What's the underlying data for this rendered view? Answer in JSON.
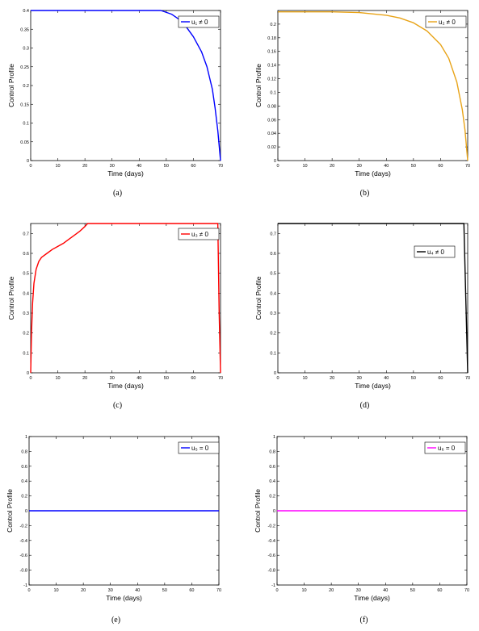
{
  "chart_data": [
    {
      "type": "line",
      "caption": "(a)",
      "xlabel": "Time (days)",
      "ylabel": "Control Profile",
      "xlim": [
        0,
        70
      ],
      "ylim": [
        0,
        0.4
      ],
      "xticks": [
        "0",
        "10",
        "20",
        "30",
        "40",
        "50",
        "60",
        "70"
      ],
      "yticks": [
        "0",
        "0.05",
        "0.1",
        "0.15",
        "0.2",
        "0.25",
        "0.3",
        "0.35",
        "0.4"
      ],
      "legend_position": "top-right",
      "grid": false,
      "series": [
        {
          "name": "u₁ ≠ 0",
          "color": "#0000ff",
          "x": [
            0,
            48,
            52,
            56,
            60,
            63,
            65,
            67,
            68,
            69,
            70
          ],
          "y": [
            0.4,
            0.4,
            0.39,
            0.37,
            0.33,
            0.29,
            0.25,
            0.19,
            0.14,
            0.08,
            0.0
          ]
        }
      ]
    },
    {
      "type": "line",
      "caption": "(b)",
      "xlabel": "Time (days)",
      "ylabel": "Control Profile",
      "xlim": [
        0,
        70
      ],
      "ylim": [
        0,
        0.22
      ],
      "xticks": [
        "0",
        "10",
        "20",
        "30",
        "40",
        "50",
        "60",
        "70"
      ],
      "yticks": [
        "0",
        "0.02",
        "0.04",
        "0.06",
        "0.08",
        "0.1",
        "0.12",
        "0.14",
        "0.16",
        "0.18",
        "0.2"
      ],
      "legend_position": "top-right",
      "grid": false,
      "series": [
        {
          "name": "u₂ ≠ 0",
          "color": "#e8a317",
          "x": [
            0,
            20,
            30,
            40,
            45,
            50,
            55,
            60,
            63,
            66,
            68,
            69,
            70
          ],
          "y": [
            0.218,
            0.218,
            0.217,
            0.213,
            0.209,
            0.202,
            0.19,
            0.17,
            0.15,
            0.115,
            0.075,
            0.045,
            0.0
          ]
        }
      ]
    },
    {
      "type": "line",
      "caption": "(c)",
      "xlabel": "Time (days)",
      "ylabel": "Control Profile",
      "xlim": [
        0,
        70
      ],
      "ylim": [
        0,
        0.75
      ],
      "xticks": [
        "0",
        "10",
        "20",
        "30",
        "40",
        "50",
        "60",
        "70"
      ],
      "yticks": [
        "0",
        "0.1",
        "0.2",
        "0.3",
        "0.4",
        "0.5",
        "0.6",
        "0.7"
      ],
      "legend_position": "top-right",
      "grid": false,
      "series": [
        {
          "name": "u₃ ≠ 0",
          "color": "#ff0000",
          "x": [
            0,
            0.3,
            0.7,
            1.2,
            2,
            3,
            4,
            6,
            8,
            10,
            12,
            14,
            16,
            18,
            20,
            21,
            69,
            69.5,
            70
          ],
          "y": [
            0.0,
            0.2,
            0.35,
            0.45,
            0.52,
            0.56,
            0.58,
            0.6,
            0.62,
            0.635,
            0.65,
            0.67,
            0.69,
            0.71,
            0.735,
            0.75,
            0.75,
            0.3,
            0.0
          ]
        }
      ]
    },
    {
      "type": "line",
      "caption": "(d)",
      "xlabel": "Time (days)",
      "ylabel": "Control Profile",
      "xlim": [
        0,
        70
      ],
      "ylim": [
        0,
        0.75
      ],
      "xticks": [
        "0",
        "10",
        "20",
        "30",
        "40",
        "50",
        "60",
        "70"
      ],
      "yticks": [
        "0",
        "0.1",
        "0.2",
        "0.3",
        "0.4",
        "0.5",
        "0.6",
        "0.7"
      ],
      "legend_position": "upper-right",
      "grid": false,
      "series": [
        {
          "name": "u₄ ≠ 0",
          "color": "#000000",
          "x": [
            0,
            68.6,
            70
          ],
          "y": [
            0.75,
            0.75,
            0.0
          ]
        }
      ]
    },
    {
      "type": "line",
      "caption": "(e)",
      "xlabel": "Time (days)",
      "ylabel": "Control Profile",
      "xlim": [
        0,
        70
      ],
      "ylim": [
        -1,
        1
      ],
      "xticks": [
        "0",
        "10",
        "20",
        "30",
        "40",
        "50",
        "60",
        "70"
      ],
      "yticks": [
        "-1",
        "-0.8",
        "-0.6",
        "-0.4",
        "-0.2",
        "0",
        "0.2",
        "0.4",
        "0.6",
        "0.8",
        "1"
      ],
      "legend_position": "top-right",
      "grid": false,
      "series": [
        {
          "name": "u₅ = 0",
          "color": "#0000ff",
          "x": [
            0,
            70
          ],
          "y": [
            0,
            0
          ]
        }
      ]
    },
    {
      "type": "line",
      "caption": "(f)",
      "xlabel": "Time (days)",
      "ylabel": "Control Profile",
      "xlim": [
        0,
        70
      ],
      "ylim": [
        -1,
        1
      ],
      "xticks": [
        "0",
        "10",
        "20",
        "30",
        "40",
        "50",
        "60",
        "70"
      ],
      "yticks": [
        "-1",
        "-0.8",
        "-0.6",
        "-0.4",
        "-0.2",
        "0",
        "0.2",
        "0.4",
        "0.6",
        "0.8",
        "1"
      ],
      "legend_position": "top-right",
      "grid": false,
      "series": [
        {
          "name": "u₆ = 0",
          "color": "#ff00ff",
          "x": [
            0,
            70
          ],
          "y": [
            0,
            0
          ]
        }
      ]
    }
  ]
}
